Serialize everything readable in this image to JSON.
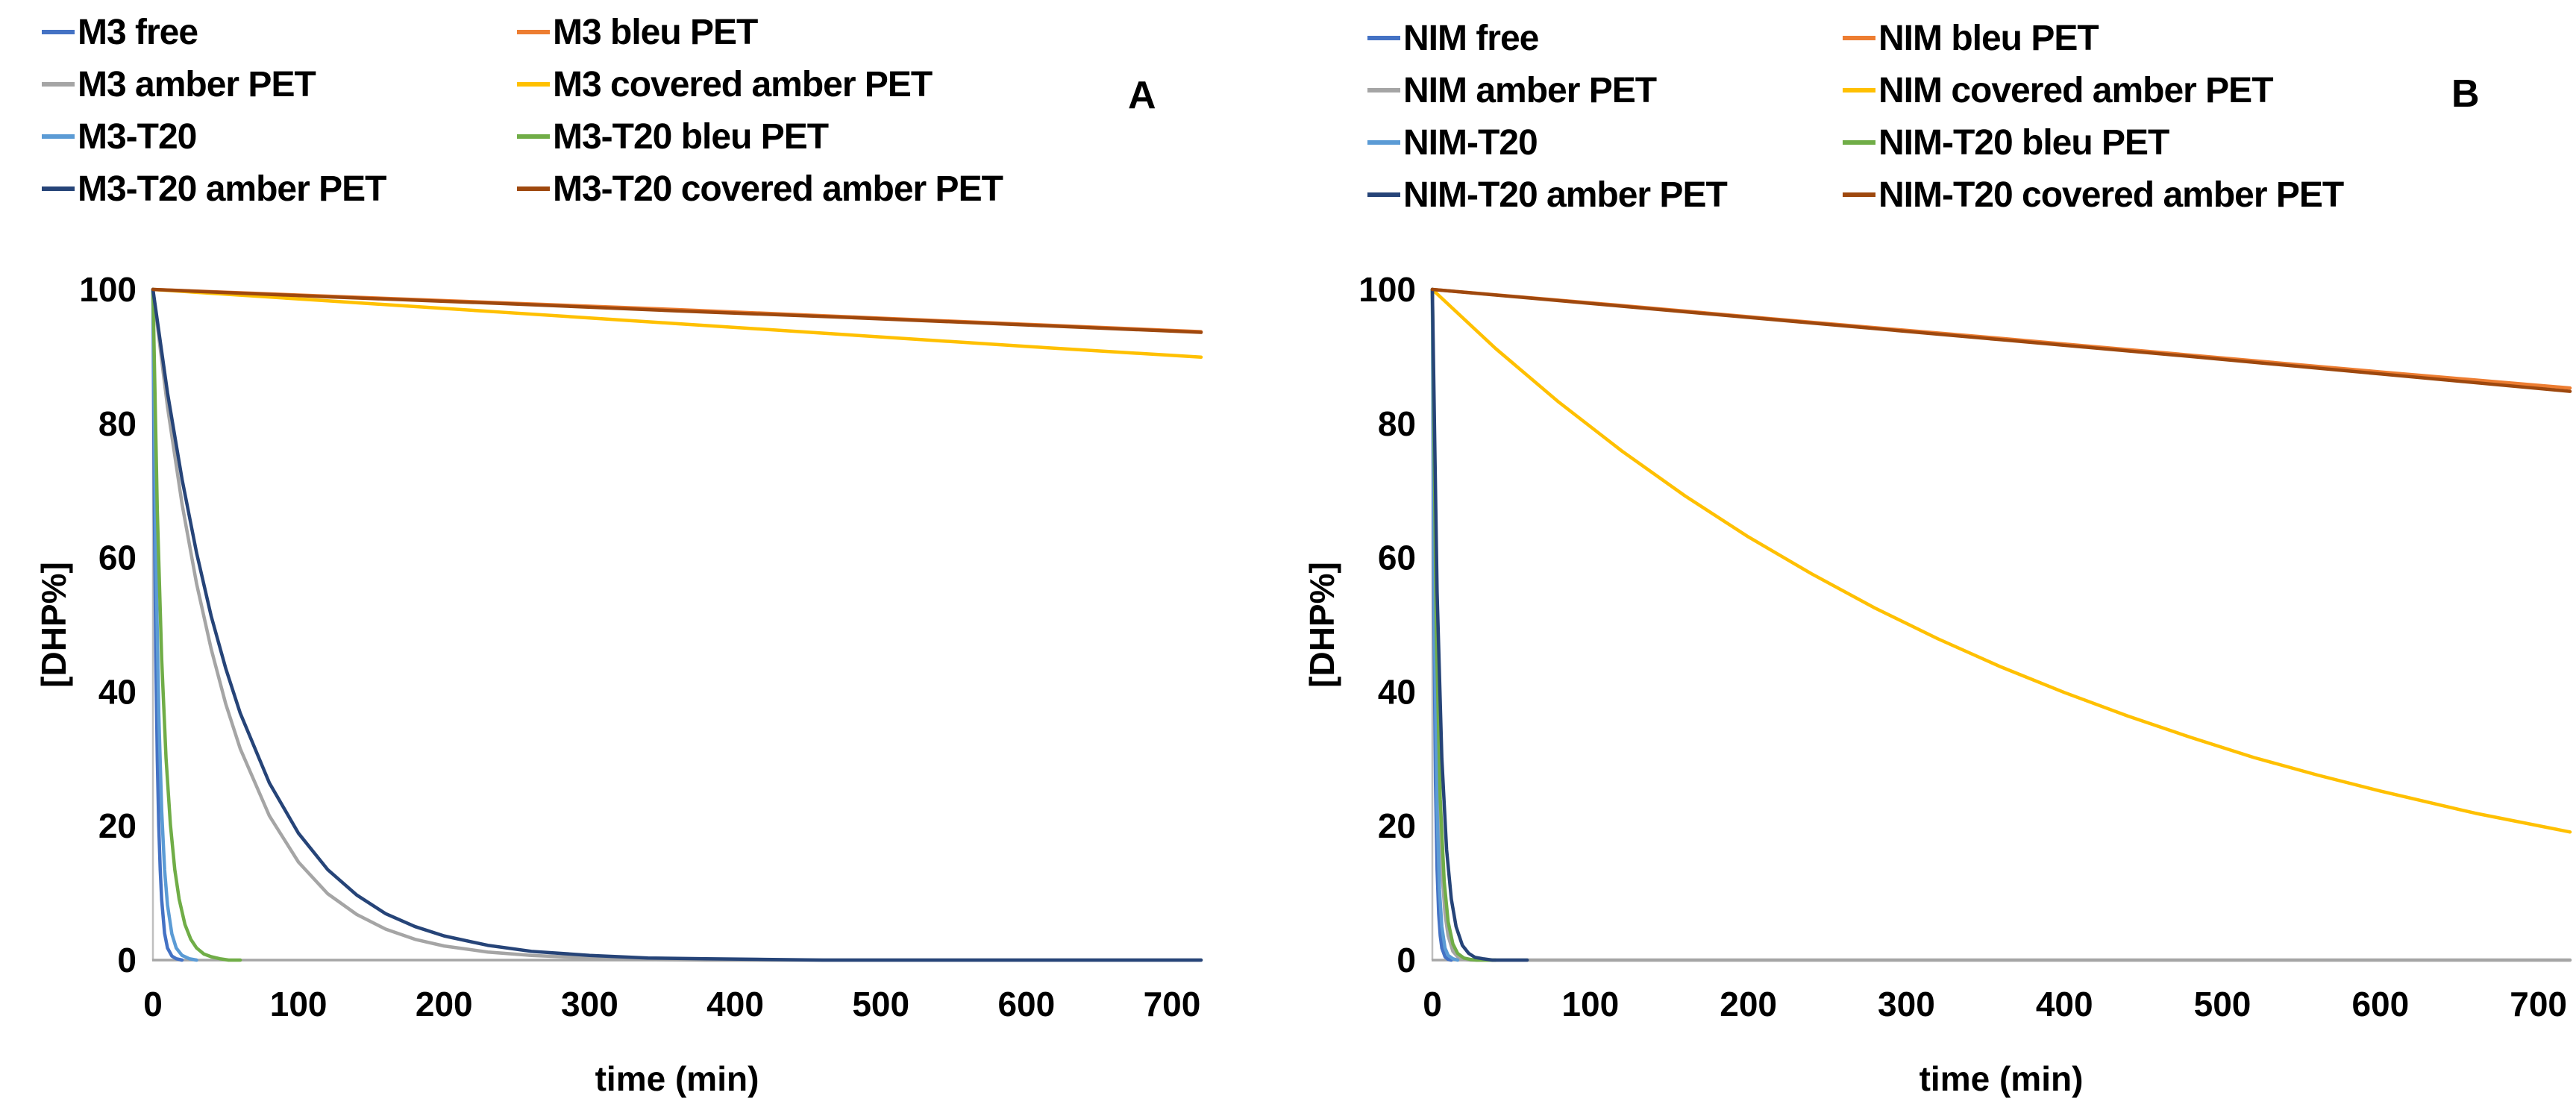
{
  "figure": {
    "panel_letters": [
      "A",
      "B"
    ]
  },
  "chart_data": [
    {
      "id": "A",
      "panel_label": "A",
      "type": "line",
      "title": "",
      "xlabel": "time (min)",
      "ylabel": "[DHP%]",
      "xlim": [
        0,
        720
      ],
      "ylim": [
        0,
        100
      ],
      "x_ticks": [
        0,
        100,
        200,
        300,
        400,
        500,
        600,
        700
      ],
      "y_ticks": [
        0,
        20,
        40,
        60,
        80,
        100
      ],
      "grid": false,
      "legend_position": "top-left-two-columns",
      "legend": [
        {
          "label": "M3 free",
          "color": "#4472C4"
        },
        {
          "label": "M3 amber PET",
          "color": "#A5A5A5"
        },
        {
          "label": "M3-T20",
          "color": "#5B9BD5"
        },
        {
          "label": "M3-T20 amber PET",
          "color": "#264478"
        },
        {
          "label": "M3 bleu PET",
          "color": "#ED7D31"
        },
        {
          "label": "M3 covered amber PET",
          "color": "#FFC000"
        },
        {
          "label": "M3-T20 bleu PET",
          "color": "#70AD47"
        },
        {
          "label": "M3-T20 covered amber PET",
          "color": "#9E480E"
        }
      ],
      "series": [
        {
          "name": "M3 free",
          "color": "#4472C4",
          "points": [
            [
              0,
              100
            ],
            [
              1,
              67
            ],
            [
              2,
              45
            ],
            [
              3,
              30
            ],
            [
              4,
              20
            ],
            [
              5,
              13.5
            ],
            [
              6,
              9
            ],
            [
              8,
              4
            ],
            [
              10,
              1.8
            ],
            [
              13,
              0.6
            ],
            [
              16,
              0.2
            ],
            [
              20,
              0
            ]
          ]
        },
        {
          "name": "M3 bleu PET",
          "color": "#ED7D31",
          "points": [
            [
              0,
              100
            ],
            [
              120,
              99
            ],
            [
              240,
              98
            ],
            [
              360,
              97
            ],
            [
              480,
              95.9
            ],
            [
              600,
              94.8
            ],
            [
              720,
              93.7
            ]
          ]
        },
        {
          "name": "M3 amber PET",
          "color": "#A5A5A5",
          "points": [
            [
              0,
              100
            ],
            [
              10,
              82.5
            ],
            [
              20,
              68
            ],
            [
              30,
              56.1
            ],
            [
              40,
              46.4
            ],
            [
              50,
              38.2
            ],
            [
              60,
              31.5
            ],
            [
              80,
              21.5
            ],
            [
              100,
              14.6
            ],
            [
              120,
              9.9
            ],
            [
              140,
              6.8
            ],
            [
              160,
              4.6
            ],
            [
              180,
              3.1
            ],
            [
              200,
              2.1
            ],
            [
              230,
              1.2
            ],
            [
              260,
              0.7
            ],
            [
              300,
              0.3
            ],
            [
              340,
              0.1
            ],
            [
              380,
              0
            ],
            [
              720,
              0
            ]
          ]
        },
        {
          "name": "M3 covered amber PET",
          "color": "#FFC000",
          "points": [
            [
              0,
              100
            ],
            [
              120,
              98.3
            ],
            [
              240,
              96.6
            ],
            [
              360,
              94.9
            ],
            [
              480,
              93.2
            ],
            [
              600,
              91.5
            ],
            [
              720,
              89.9
            ]
          ]
        },
        {
          "name": "M3-T20",
          "color": "#5B9BD5",
          "points": [
            [
              0,
              100
            ],
            [
              2,
              60.7
            ],
            [
              4,
              36.8
            ],
            [
              6,
              22.3
            ],
            [
              8,
              13.5
            ],
            [
              10,
              8.2
            ],
            [
              13,
              3.9
            ],
            [
              16,
              1.8
            ],
            [
              20,
              0.7
            ],
            [
              25,
              0.2
            ],
            [
              30,
              0
            ]
          ]
        },
        {
          "name": "M3-T20 bleu PET",
          "color": "#70AD47",
          "points": [
            [
              0,
              100
            ],
            [
              3,
              67
            ],
            [
              6,
              44.9
            ],
            [
              9,
              30.1
            ],
            [
              12,
              20.2
            ],
            [
              15,
              13.5
            ],
            [
              18,
              9.1
            ],
            [
              22,
              5.3
            ],
            [
              26,
              3.1
            ],
            [
              30,
              1.8
            ],
            [
              35,
              0.9
            ],
            [
              40,
              0.5
            ],
            [
              46,
              0.2
            ],
            [
              52,
              0
            ],
            [
              60,
              0
            ]
          ]
        },
        {
          "name": "M3-T20 amber PET",
          "color": "#264478",
          "points": [
            [
              0,
              100
            ],
            [
              10,
              84.6
            ],
            [
              20,
              71.7
            ],
            [
              30,
              60.7
            ],
            [
              40,
              51.3
            ],
            [
              50,
              43.5
            ],
            [
              60,
              36.8
            ],
            [
              80,
              26.4
            ],
            [
              100,
              18.9
            ],
            [
              120,
              13.5
            ],
            [
              140,
              9.7
            ],
            [
              160,
              6.9
            ],
            [
              180,
              5
            ],
            [
              200,
              3.6
            ],
            [
              230,
              2.2
            ],
            [
              260,
              1.3
            ],
            [
              300,
              0.7
            ],
            [
              340,
              0.3
            ],
            [
              380,
              0.2
            ],
            [
              420,
              0.1
            ],
            [
              460,
              0
            ],
            [
              720,
              0
            ]
          ]
        },
        {
          "name": "M3-T20 covered amber PET",
          "color": "#9E480E",
          "points": [
            [
              0,
              100
            ],
            [
              120,
              98.9
            ],
            [
              240,
              97.9
            ],
            [
              360,
              96.8
            ],
            [
              480,
              95.8
            ],
            [
              600,
              94.7
            ],
            [
              720,
              93.6
            ]
          ]
        }
      ]
    },
    {
      "id": "B",
      "panel_label": "B",
      "type": "line",
      "title": "",
      "xlabel": "time (min)",
      "ylabel": "[DHP%]",
      "xlim": [
        0,
        720
      ],
      "ylim": [
        0,
        100
      ],
      "x_ticks": [
        0,
        100,
        200,
        300,
        400,
        500,
        600,
        700
      ],
      "y_ticks": [
        0,
        20,
        40,
        60,
        80,
        100
      ],
      "grid": false,
      "legend_position": "top-left-two-columns",
      "legend": [
        {
          "label": "NIM free",
          "color": "#4472C4"
        },
        {
          "label": "NIM amber PET",
          "color": "#A5A5A5"
        },
        {
          "label": "NIM-T20",
          "color": "#5B9BD5"
        },
        {
          "label": "NIM-T20 amber PET",
          "color": "#264478"
        },
        {
          "label": "NIM bleu PET",
          "color": "#ED7D31"
        },
        {
          "label": "NIM covered amber PET",
          "color": "#FFC000"
        },
        {
          "label": "NIM-T20 bleu PET",
          "color": "#70AD47"
        },
        {
          "label": "NIM-T20 covered amber PET",
          "color": "#9E480E"
        }
      ],
      "series": [
        {
          "name": "NIM free",
          "color": "#4472C4",
          "points": [
            [
              0,
              100
            ],
            [
              1,
              51.3
            ],
            [
              2,
              26.4
            ],
            [
              3,
              13.5
            ],
            [
              4,
              6.9
            ],
            [
              5,
              3.6
            ],
            [
              6,
              1.8
            ],
            [
              8,
              0.5
            ],
            [
              10,
              0.1
            ],
            [
              12,
              0
            ]
          ]
        },
        {
          "name": "NIM bleu PET",
          "color": "#ED7D31",
          "points": [
            [
              0,
              100
            ],
            [
              120,
              97.6
            ],
            [
              240,
              95.1
            ],
            [
              360,
              92.7
            ],
            [
              480,
              90.2
            ],
            [
              600,
              87.7
            ],
            [
              720,
              85.3
            ]
          ]
        },
        {
          "name": "NIM amber PET",
          "color": "#A5A5A5",
          "points": [
            [
              0,
              100
            ],
            [
              2,
              51.3
            ],
            [
              4,
              26.4
            ],
            [
              6,
              13.5
            ],
            [
              8,
              6.9
            ],
            [
              10,
              3.6
            ],
            [
              13,
              1.3
            ],
            [
              16,
              0.5
            ],
            [
              20,
              0.1
            ],
            [
              24,
              0
            ],
            [
              720,
              0
            ]
          ]
        },
        {
          "name": "NIM covered amber PET",
          "color": "#FFC000",
          "points": [
            [
              0,
              100
            ],
            [
              40,
              91.2
            ],
            [
              80,
              83.2
            ],
            [
              120,
              75.9
            ],
            [
              160,
              69.2
            ],
            [
              200,
              63.1
            ],
            [
              240,
              57.6
            ],
            [
              280,
              52.5
            ],
            [
              320,
              47.9
            ],
            [
              360,
              43.7
            ],
            [
              400,
              39.9
            ],
            [
              440,
              36.4
            ],
            [
              480,
              33.2
            ],
            [
              520,
              30.2
            ],
            [
              560,
              27.6
            ],
            [
              600,
              25.2
            ],
            [
              660,
              21.9
            ],
            [
              720,
              19.1
            ]
          ]
        },
        {
          "name": "NIM-T20",
          "color": "#5B9BD5",
          "points": [
            [
              0,
              100
            ],
            [
              1.5,
              47.2
            ],
            [
              3,
              22.3
            ],
            [
              4.5,
              10.5
            ],
            [
              6,
              5
            ],
            [
              8,
              1.8
            ],
            [
              10,
              0.7
            ],
            [
              13,
              0.2
            ],
            [
              16,
              0
            ]
          ]
        },
        {
          "name": "NIM-T20 bleu PET",
          "color": "#70AD47",
          "points": [
            [
              0,
              100
            ],
            [
              2.5,
              49
            ],
            [
              5,
              24
            ],
            [
              7.5,
              11.7
            ],
            [
              10,
              5.7
            ],
            [
              13,
              2.4
            ],
            [
              16,
              1
            ],
            [
              20,
              0.3
            ],
            [
              24,
              0.1
            ],
            [
              28,
              0
            ],
            [
              40,
              0
            ]
          ]
        },
        {
          "name": "NIM-T20 amber PET",
          "color": "#264478",
          "points": [
            [
              0,
              100
            ],
            [
              3,
              54.9
            ],
            [
              6,
              30.1
            ],
            [
              9,
              16.5
            ],
            [
              12,
              9.1
            ],
            [
              15,
              5
            ],
            [
              19,
              2.2
            ],
            [
              23,
              1
            ],
            [
              27,
              0.4
            ],
            [
              32,
              0.2
            ],
            [
              38,
              0
            ],
            [
              60,
              0
            ]
          ]
        },
        {
          "name": "NIM-T20 covered amber PET",
          "color": "#9E480E",
          "points": [
            [
              0,
              100
            ],
            [
              120,
              97.5
            ],
            [
              240,
              95
            ],
            [
              360,
              92.5
            ],
            [
              480,
              90
            ],
            [
              600,
              87.4
            ],
            [
              720,
              84.8
            ]
          ]
        }
      ]
    }
  ]
}
